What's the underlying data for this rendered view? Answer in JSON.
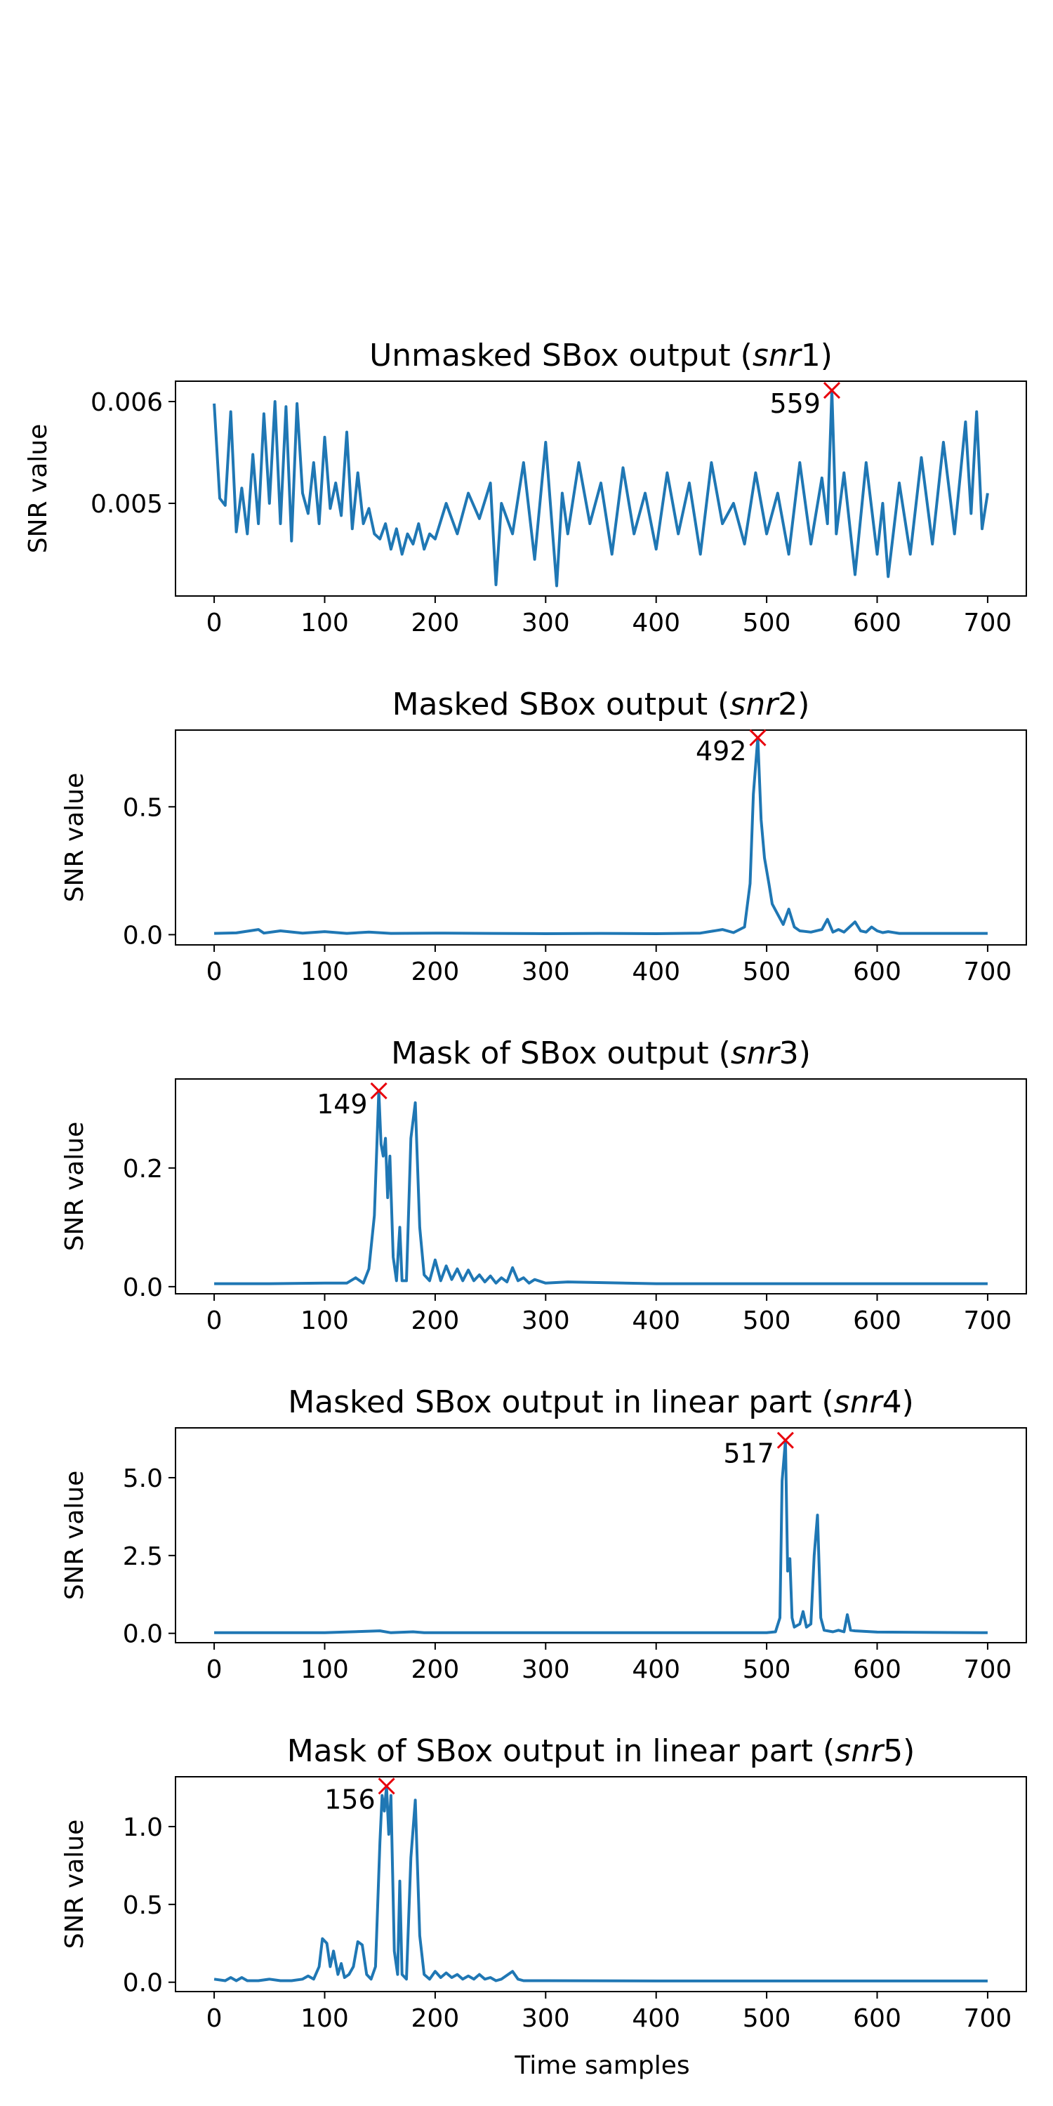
{
  "figure": {
    "xlabel": "Time samples"
  },
  "colors": {
    "line": "#1f77b4",
    "marker": "#e8000b",
    "axes": "#000000"
  },
  "chart_data": [
    {
      "type": "line",
      "title_main": "Unmasked SBox output (",
      "title_var": "snr",
      "title_num": "1",
      "title_end": ")",
      "ylabel": "SNR value",
      "xlim": [
        -35,
        735
      ],
      "ylim": [
        0.00409,
        0.0062
      ],
      "xticks": [
        0,
        100,
        200,
        300,
        400,
        500,
        600,
        700
      ],
      "yticks": [
        0.005,
        0.006
      ],
      "ytick_labels": [
        "0.005",
        "0.006"
      ],
      "peak": {
        "x": 559,
        "y": 0.00611,
        "label": "559"
      },
      "series": [
        {
          "x": [
            0,
            5,
            10,
            15,
            20,
            25,
            30,
            35,
            40,
            45,
            50,
            55,
            60,
            65,
            70,
            75,
            80,
            85,
            90,
            95,
            100,
            105,
            110,
            115,
            120,
            125,
            130,
            135,
            140,
            145,
            150,
            155,
            160,
            165,
            170,
            175,
            180,
            185,
            190,
            195,
            200,
            210,
            220,
            230,
            240,
            250,
            255,
            260,
            270,
            280,
            290,
            300,
            310,
            315,
            320,
            330,
            340,
            350,
            360,
            370,
            380,
            390,
            400,
            410,
            420,
            430,
            440,
            450,
            460,
            470,
            480,
            490,
            500,
            510,
            520,
            530,
            540,
            550,
            555,
            559,
            563,
            570,
            580,
            590,
            600,
            605,
            610,
            620,
            630,
            640,
            650,
            660,
            670,
            680,
            685,
            690,
            695,
            700
          ],
          "y": [
            0.00598,
            0.00505,
            0.00498,
            0.0059,
            0.00472,
            0.00515,
            0.0047,
            0.00548,
            0.0048,
            0.00588,
            0.005,
            0.006,
            0.0048,
            0.00595,
            0.00463,
            0.00598,
            0.0051,
            0.0049,
            0.0054,
            0.0048,
            0.00565,
            0.00495,
            0.0052,
            0.00488,
            0.0057,
            0.00475,
            0.0053,
            0.0048,
            0.00495,
            0.0047,
            0.00465,
            0.0048,
            0.00455,
            0.00475,
            0.0045,
            0.0047,
            0.0046,
            0.0048,
            0.00455,
            0.0047,
            0.00465,
            0.005,
            0.0047,
            0.0051,
            0.00485,
            0.0052,
            0.0042,
            0.005,
            0.0047,
            0.0054,
            0.00445,
            0.0056,
            0.00419,
            0.0051,
            0.0047,
            0.0054,
            0.0048,
            0.0052,
            0.0045,
            0.00535,
            0.0047,
            0.0051,
            0.00455,
            0.0053,
            0.0047,
            0.0052,
            0.0045,
            0.0054,
            0.0048,
            0.005,
            0.0046,
            0.0053,
            0.0047,
            0.0051,
            0.0045,
            0.0054,
            0.0046,
            0.00525,
            0.0048,
            0.00611,
            0.0047,
            0.0053,
            0.0043,
            0.0054,
            0.0045,
            0.005,
            0.00428,
            0.0052,
            0.0045,
            0.00545,
            0.0046,
            0.0056,
            0.0047,
            0.0058,
            0.0049,
            0.0059,
            0.00475,
            0.0051
          ]
        }
      ]
    },
    {
      "type": "line",
      "title_main": "Masked SBox output (",
      "title_var": "snr",
      "title_num": "2",
      "title_end": ")",
      "ylabel": "SNR value",
      "xlim": [
        -35,
        735
      ],
      "ylim": [
        -0.04,
        0.8
      ],
      "xticks": [
        0,
        100,
        200,
        300,
        400,
        500,
        600,
        700
      ],
      "yticks": [
        0.0,
        0.5
      ],
      "ytick_labels": [
        "0.0",
        "0.5"
      ],
      "peak": {
        "x": 492,
        "y": 0.77,
        "label": "492"
      },
      "series": [
        {
          "x": [
            0,
            20,
            40,
            45,
            60,
            80,
            100,
            120,
            140,
            160,
            200,
            250,
            300,
            350,
            400,
            440,
            460,
            470,
            480,
            485,
            488,
            492,
            495,
            498,
            502,
            505,
            510,
            515,
            520,
            525,
            530,
            540,
            550,
            555,
            560,
            565,
            570,
            580,
            585,
            590,
            595,
            600,
            605,
            610,
            620,
            700
          ],
          "y": [
            0.005,
            0.007,
            0.02,
            0.006,
            0.015,
            0.006,
            0.012,
            0.005,
            0.01,
            0.005,
            0.006,
            0.005,
            0.004,
            0.005,
            0.004,
            0.006,
            0.02,
            0.008,
            0.03,
            0.2,
            0.55,
            0.77,
            0.45,
            0.3,
            0.2,
            0.12,
            0.08,
            0.04,
            0.1,
            0.03,
            0.015,
            0.01,
            0.02,
            0.06,
            0.01,
            0.02,
            0.01,
            0.05,
            0.015,
            0.01,
            0.03,
            0.015,
            0.008,
            0.012,
            0.005,
            0.005
          ]
        }
      ]
    },
    {
      "type": "line",
      "title_main": "Mask of SBox output (",
      "title_var": "snr",
      "title_num": "3",
      "title_end": ")",
      "ylabel": "SNR value",
      "xlim": [
        -35,
        735
      ],
      "ylim": [
        -0.012,
        0.35
      ],
      "xticks": [
        0,
        100,
        200,
        300,
        400,
        500,
        600,
        700
      ],
      "yticks": [
        0.0,
        0.2
      ],
      "ytick_labels": [
        "0.0",
        "0.2"
      ],
      "peak": {
        "x": 149,
        "y": 0.33,
        "label": "149"
      },
      "series": [
        {
          "x": [
            0,
            50,
            100,
            120,
            128,
            135,
            140,
            145,
            149,
            151,
            153,
            155,
            157,
            159,
            162,
            165,
            168,
            170,
            174,
            178,
            182,
            186,
            190,
            195,
            200,
            205,
            210,
            215,
            220,
            225,
            230,
            235,
            240,
            245,
            250,
            255,
            260,
            265,
            270,
            275,
            280,
            285,
            290,
            300,
            320,
            400,
            500,
            600,
            700
          ],
          "y": [
            0.005,
            0.005,
            0.006,
            0.006,
            0.015,
            0.006,
            0.03,
            0.12,
            0.33,
            0.24,
            0.22,
            0.25,
            0.15,
            0.22,
            0.05,
            0.01,
            0.1,
            0.01,
            0.01,
            0.25,
            0.31,
            0.1,
            0.02,
            0.01,
            0.045,
            0.01,
            0.035,
            0.012,
            0.03,
            0.01,
            0.028,
            0.01,
            0.02,
            0.008,
            0.018,
            0.006,
            0.015,
            0.008,
            0.032,
            0.01,
            0.015,
            0.006,
            0.012,
            0.006,
            0.008,
            0.005,
            0.005,
            0.005,
            0.005
          ]
        }
      ]
    },
    {
      "type": "line",
      "title_main": "Masked SBox output in linear part (",
      "title_var": "snr",
      "title_num": "4",
      "title_end": ")",
      "ylabel": "SNR value",
      "xlim": [
        -35,
        735
      ],
      "ylim": [
        -0.3,
        6.6
      ],
      "xticks": [
        0,
        100,
        200,
        300,
        400,
        500,
        600,
        700
      ],
      "yticks": [
        0.0,
        2.5,
        5.0
      ],
      "ytick_labels": [
        "0.0",
        "2.5",
        "5.0"
      ],
      "peak": {
        "x": 517,
        "y": 6.2,
        "label": "517"
      },
      "series": [
        {
          "x": [
            0,
            100,
            150,
            160,
            180,
            190,
            200,
            300,
            400,
            500,
            508,
            512,
            514,
            517,
            519,
            521,
            523,
            525,
            530,
            533,
            536,
            540,
            543,
            546,
            549,
            552,
            560,
            565,
            570,
            573,
            576,
            580,
            590,
            600,
            650,
            700
          ],
          "y": [
            0.02,
            0.02,
            0.08,
            0.02,
            0.05,
            0.02,
            0.02,
            0.02,
            0.02,
            0.02,
            0.05,
            0.5,
            4.9,
            6.2,
            2.0,
            2.4,
            0.5,
            0.2,
            0.3,
            0.7,
            0.2,
            0.3,
            2.5,
            3.8,
            0.5,
            0.1,
            0.05,
            0.1,
            0.05,
            0.6,
            0.1,
            0.08,
            0.06,
            0.04,
            0.03,
            0.02
          ]
        }
      ]
    },
    {
      "type": "line",
      "title_main": "Mask of SBox output in linear part (",
      "title_var": "snr",
      "title_num": "5",
      "title_end": ")",
      "ylabel": "SNR value",
      "xlim": [
        -35,
        735
      ],
      "ylim": [
        -0.06,
        1.32
      ],
      "xticks": [
        0,
        100,
        200,
        300,
        400,
        500,
        600,
        700
      ],
      "yticks": [
        0.0,
        0.5,
        1.0
      ],
      "ytick_labels": [
        "0.0",
        "0.5",
        "1.0"
      ],
      "peak": {
        "x": 156,
        "y": 1.26,
        "label": "156"
      },
      "series": [
        {
          "x": [
            0,
            10,
            15,
            20,
            25,
            30,
            40,
            50,
            60,
            70,
            80,
            85,
            90,
            95,
            98,
            102,
            105,
            108,
            112,
            115,
            118,
            122,
            126,
            130,
            134,
            138,
            142,
            146,
            150,
            152,
            154,
            156,
            158,
            160,
            163,
            166,
            168,
            170,
            174,
            178,
            182,
            186,
            190,
            195,
            200,
            205,
            210,
            215,
            220,
            225,
            230,
            235,
            240,
            245,
            250,
            255,
            260,
            270,
            275,
            280,
            300,
            400,
            500,
            600,
            700
          ],
          "y": [
            0.02,
            0.01,
            0.03,
            0.01,
            0.03,
            0.01,
            0.01,
            0.02,
            0.01,
            0.01,
            0.02,
            0.04,
            0.02,
            0.1,
            0.28,
            0.25,
            0.1,
            0.2,
            0.05,
            0.12,
            0.03,
            0.05,
            0.1,
            0.26,
            0.24,
            0.05,
            0.02,
            0.1,
            0.9,
            1.2,
            1.1,
            1.26,
            0.95,
            1.2,
            0.2,
            0.05,
            0.65,
            0.05,
            0.02,
            0.8,
            1.17,
            0.3,
            0.05,
            0.02,
            0.07,
            0.03,
            0.06,
            0.03,
            0.05,
            0.02,
            0.04,
            0.02,
            0.05,
            0.02,
            0.03,
            0.01,
            0.02,
            0.07,
            0.02,
            0.01,
            0.01,
            0.008,
            0.008,
            0.008,
            0.008
          ]
        }
      ]
    }
  ]
}
